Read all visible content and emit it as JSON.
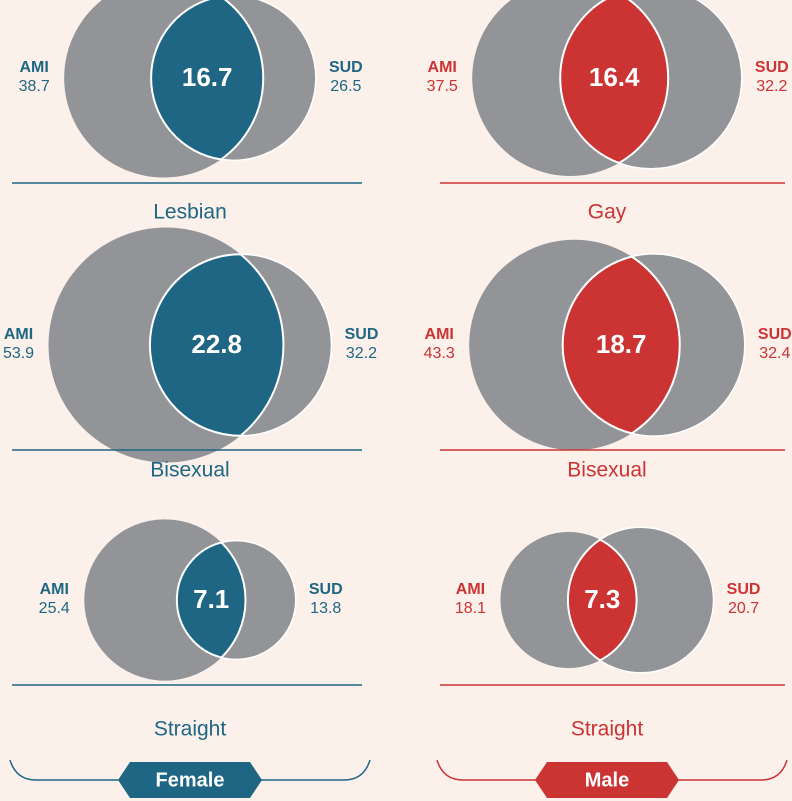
{
  "chart_data": [
    {
      "type": "venn",
      "title": "Lesbian",
      "color": "#1e6683",
      "sets": [
        {
          "name": "AMI",
          "value": 38.7
        },
        {
          "name": "SUD",
          "value": 26.5
        }
      ],
      "overlap": 16.7
    },
    {
      "type": "venn",
      "title": "Gay",
      "color": "#cc3333",
      "sets": [
        {
          "name": "AMI",
          "value": 37.5
        },
        {
          "name": "SUD",
          "value": 32.2
        }
      ],
      "overlap": 16.4
    },
    {
      "type": "venn",
      "title": "Bisexual",
      "color": "#1e6683",
      "sets": [
        {
          "name": "AMI",
          "value": 53.9
        },
        {
          "name": "SUD",
          "value": 32.2
        }
      ],
      "overlap": 22.8
    },
    {
      "type": "venn",
      "title": "Bisexual",
      "color": "#cc3333",
      "sets": [
        {
          "name": "AMI",
          "value": 43.3
        },
        {
          "name": "SUD",
          "value": 32.4
        }
      ],
      "overlap": 18.7
    },
    {
      "type": "venn",
      "title": "Straight",
      "color": "#1e6683",
      "sets": [
        {
          "name": "AMI",
          "value": 25.4
        },
        {
          "name": "SUD",
          "value": 13.8
        }
      ],
      "overlap": 7.1
    },
    {
      "type": "venn",
      "title": "Straight",
      "color": "#cc3333",
      "sets": [
        {
          "name": "AMI",
          "value": 18.1
        },
        {
          "name": "SUD",
          "value": 20.7
        }
      ],
      "overlap": 7.3
    }
  ],
  "groups": [
    {
      "label": "Female",
      "color": "#1e6683"
    },
    {
      "label": "Male",
      "color": "#cc3333"
    }
  ]
}
